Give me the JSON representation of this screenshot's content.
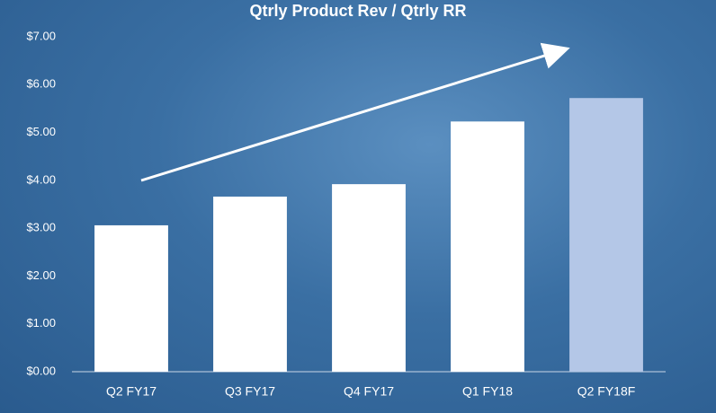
{
  "chart_data": {
    "type": "bar",
    "title": "Qtrly Product Rev / Qtrly RR",
    "categories": [
      "Q2 FY17",
      "Q3 FY17",
      "Q4 FY17",
      "Q1 FY18",
      "Q2 FY18F"
    ],
    "values": [
      3.06,
      3.66,
      3.92,
      5.23,
      5.72
    ],
    "colors": [
      "#ffffff",
      "#ffffff",
      "#ffffff",
      "#ffffff",
      "#b4c7e7"
    ],
    "ylim": [
      0,
      7
    ],
    "yticks": [
      {
        "value": 0,
        "label": "$0.00"
      },
      {
        "value": 1,
        "label": "$1.00"
      },
      {
        "value": 2,
        "label": "$2.00"
      },
      {
        "value": 3,
        "label": "$3.00"
      },
      {
        "value": 4,
        "label": "$4.00"
      },
      {
        "value": 5,
        "label": "$5.00"
      },
      {
        "value": 6,
        "label": "$6.00"
      },
      {
        "value": 7,
        "label": "$7.00"
      }
    ],
    "grid": false
  }
}
